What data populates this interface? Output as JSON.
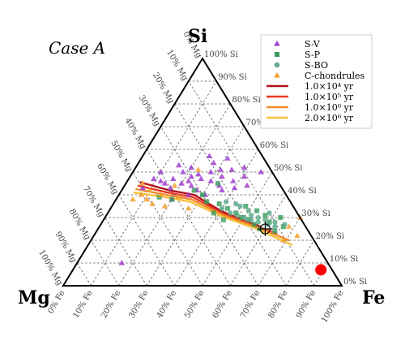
{
  "chart_data": {
    "type": "scatter",
    "subtype": "ternary",
    "case_label": "Case A",
    "corners": {
      "top": "Si",
      "left": "Mg",
      "right": "Fe"
    },
    "grid": true,
    "legend_position": "top-right",
    "si_ticks": [
      "0% Si",
      "10% Si",
      "20% Si",
      "30% Si",
      "40% Si",
      "50% Si",
      "60% Si",
      "70% Si",
      "80% Si",
      "90% Si",
      "100% Si"
    ],
    "mg_ticks": [
      "0% Mg",
      "10% Mg",
      "20% Mg",
      "30% Mg",
      "40% Mg",
      "50% Mg",
      "60% Mg",
      "70% Mg",
      "80% Mg",
      "90% Mg",
      "100% Mg"
    ],
    "fe_ticks": [
      "0% Fe",
      "10% Fe",
      "20% Fe",
      "30% Fe",
      "40% Fe",
      "50% Fe",
      "60% Fe",
      "70% Fe",
      "80% Fe",
      "90% Fe",
      "100% Fe"
    ],
    "series": [
      {
        "name": "S-V",
        "marker": "triangle",
        "color": "#a040d0",
        "points": [
          {
            "si": 0.5,
            "fe": 0.1
          },
          {
            "si": 0.43,
            "fe": 0.07
          },
          {
            "si": 0.46,
            "fe": 0.12
          },
          {
            "si": 0.47,
            "fe": 0.16
          },
          {
            "si": 0.5,
            "fe": 0.18
          },
          {
            "si": 0.45,
            "fe": 0.2
          },
          {
            "si": 0.43,
            "fe": 0.17
          },
          {
            "si": 0.48,
            "fe": 0.22
          },
          {
            "si": 0.52,
            "fe": 0.2
          },
          {
            "si": 0.47,
            "fe": 0.26
          },
          {
            "si": 0.44,
            "fe": 0.24
          },
          {
            "si": 0.5,
            "fe": 0.28
          },
          {
            "si": 0.46,
            "fe": 0.3
          },
          {
            "si": 0.42,
            "fe": 0.27
          },
          {
            "si": 0.48,
            "fe": 0.33
          },
          {
            "si": 0.44,
            "fe": 0.34
          },
          {
            "si": 0.54,
            "fe": 0.27
          },
          {
            "si": 0.51,
            "fe": 0.35
          },
          {
            "si": 0.46,
            "fe": 0.38
          },
          {
            "si": 0.42,
            "fe": 0.36
          },
          {
            "si": 0.48,
            "fe": 0.41
          },
          {
            "si": 0.52,
            "fe": 0.39
          },
          {
            "si": 0.56,
            "fe": 0.31
          },
          {
            "si": 0.44,
            "fe": 0.44
          },
          {
            "si": 0.4,
            "fe": 0.25
          },
          {
            "si": 0.38,
            "fe": 0.2
          },
          {
            "si": 0.53,
            "fe": 0.15
          },
          {
            "si": 0.5,
            "fe": 0.46
          },
          {
            "si": 0.46,
            "fe": 0.22
          },
          {
            "si": 0.45,
            "fe": 0.14
          },
          {
            "si": 0.57,
            "fe": 0.24
          },
          {
            "si": 0.43,
            "fe": 0.4
          },
          {
            "si": 0.51,
            "fe": 0.31
          },
          {
            "si": 0.49,
            "fe": 0.24
          },
          {
            "si": 0.47,
            "fe": 0.09
          },
          {
            "si": 0.4,
            "fe": 0.31
          },
          {
            "si": 0.1,
            "fe": 0.16
          }
        ]
      },
      {
        "name": "S-P",
        "marker": "square",
        "color": "#3a9a5c",
        "points": [
          {
            "si": 0.4,
            "fe": 0.3
          },
          {
            "si": 0.36,
            "fe": 0.38
          },
          {
            "si": 0.34,
            "fe": 0.42
          },
          {
            "si": 0.32,
            "fe": 0.46
          },
          {
            "si": 0.3,
            "fe": 0.49
          },
          {
            "si": 0.29,
            "fe": 0.52
          },
          {
            "si": 0.27,
            "fe": 0.55
          },
          {
            "si": 0.28,
            "fe": 0.6
          },
          {
            "si": 0.31,
            "fe": 0.57
          },
          {
            "si": 0.25,
            "fe": 0.58
          },
          {
            "si": 0.3,
            "fe": 0.63
          },
          {
            "si": 0.26,
            "fe": 0.66
          },
          {
            "si": 0.35,
            "fe": 0.48
          },
          {
            "si": 0.42,
            "fe": 0.26
          },
          {
            "si": 0.38,
            "fe": 0.2
          },
          {
            "si": 0.45,
            "fe": 0.33
          },
          {
            "si": 0.33,
            "fe": 0.53
          },
          {
            "si": 0.24,
            "fe": 0.64
          },
          {
            "si": 0.39,
            "fe": 0.15
          },
          {
            "si": 0.37,
            "fe": 0.33
          },
          {
            "si": 0.29,
            "fe": 0.43
          },
          {
            "si": 0.32,
            "fe": 0.38
          }
        ]
      },
      {
        "name": "S-BO",
        "marker": "circle",
        "color": "#5aa88a",
        "points": [
          {
            "si": 0.34,
            "fe": 0.4
          },
          {
            "si": 0.32,
            "fe": 0.44
          },
          {
            "si": 0.31,
            "fe": 0.47
          },
          {
            "si": 0.3,
            "fe": 0.5
          },
          {
            "si": 0.29,
            "fe": 0.53
          },
          {
            "si": 0.28,
            "fe": 0.56
          },
          {
            "si": 0.29,
            "fe": 0.58
          },
          {
            "si": 0.27,
            "fe": 0.6
          },
          {
            "si": 0.3,
            "fe": 0.55
          },
          {
            "si": 0.33,
            "fe": 0.5
          },
          {
            "si": 0.36,
            "fe": 0.44
          },
          {
            "si": 0.28,
            "fe": 0.62
          },
          {
            "si": 0.26,
            "fe": 0.63
          },
          {
            "si": 0.31,
            "fe": 0.52
          },
          {
            "si": 0.35,
            "fe": 0.46
          },
          {
            "si": 0.37,
            "fe": 0.4
          },
          {
            "si": 0.32,
            "fe": 0.58
          },
          {
            "si": 0.27,
            "fe": 0.66
          }
        ]
      },
      {
        "name": "C-chondrules",
        "marker": "triangle",
        "color": "#f0a030",
        "points": [
          {
            "si": 0.4,
            "fe": 0.08
          },
          {
            "si": 0.38,
            "fe": 0.11
          },
          {
            "si": 0.42,
            "fe": 0.1
          },
          {
            "si": 0.36,
            "fe": 0.14
          },
          {
            "si": 0.4,
            "fe": 0.15
          },
          {
            "si": 0.44,
            "fe": 0.18
          },
          {
            "si": 0.39,
            "fe": 0.22
          },
          {
            "si": 0.35,
            "fe": 0.19
          },
          {
            "si": 0.51,
            "fe": 0.23
          },
          {
            "si": 0.38,
            "fe": 0.06
          },
          {
            "si": 0.45,
            "fe": 0.06
          },
          {
            "si": 0.34,
            "fe": 0.28
          },
          {
            "si": 0.2,
            "fe": 0.69
          },
          {
            "si": 0.3,
            "fe": 0.7
          },
          {
            "si": 0.26,
            "fe": 0.68
          },
          {
            "si": 0.22,
            "fe": 0.73
          }
        ]
      }
    ],
    "tracks": [
      {
        "name": "1.0×10⁴ yr",
        "color": "#b0101a",
        "points": [
          {
            "si": 0.455,
            "fe": 0.05
          },
          {
            "si": 0.42,
            "fe": 0.17
          },
          {
            "si": 0.4,
            "fe": 0.27
          },
          {
            "si": 0.33,
            "fe": 0.4
          },
          {
            "si": 0.28,
            "fe": 0.52
          },
          {
            "si": 0.26,
            "fe": 0.58
          }
        ]
      },
      {
        "name": "1.0×10⁵ yr",
        "color": "#e83a22",
        "points": [
          {
            "si": 0.44,
            "fe": 0.05
          },
          {
            "si": 0.41,
            "fe": 0.17
          },
          {
            "si": 0.39,
            "fe": 0.27
          },
          {
            "si": 0.32,
            "fe": 0.41
          },
          {
            "si": 0.27,
            "fe": 0.54
          },
          {
            "si": 0.23,
            "fe": 0.65
          }
        ]
      },
      {
        "name": "1.0×10⁶ yr",
        "color": "#f28a2a",
        "points": [
          {
            "si": 0.425,
            "fe": 0.05
          },
          {
            "si": 0.4,
            "fe": 0.17
          },
          {
            "si": 0.38,
            "fe": 0.27
          },
          {
            "si": 0.31,
            "fe": 0.42
          },
          {
            "si": 0.26,
            "fe": 0.56
          },
          {
            "si": 0.2,
            "fe": 0.71
          }
        ]
      },
      {
        "name": "2.0×10⁶ yr",
        "color": "#f8c040",
        "points": [
          {
            "si": 0.41,
            "fe": 0.05
          },
          {
            "si": 0.39,
            "fe": 0.17
          },
          {
            "si": 0.37,
            "fe": 0.27
          },
          {
            "si": 0.3,
            "fe": 0.43
          },
          {
            "si": 0.25,
            "fe": 0.57
          },
          {
            "si": 0.18,
            "fe": 0.73
          }
        ]
      }
    ],
    "reference_marker": {
      "si": 0.25,
      "fe": 0.6
    },
    "red_dot": {
      "si": 0.07,
      "fe": 0.89,
      "color": "#ff0000"
    }
  }
}
